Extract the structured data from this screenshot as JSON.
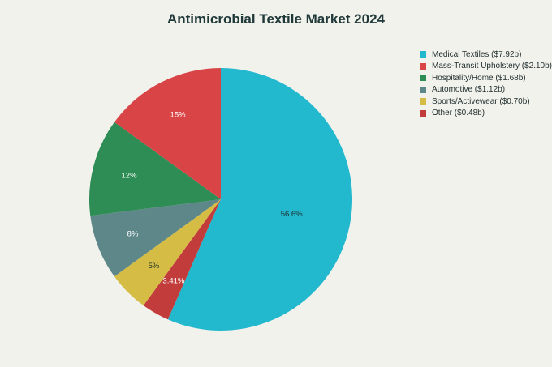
{
  "chart_data": {
    "type": "pie",
    "title": "Antimicrobial Textile Market 2024",
    "slices": [
      {
        "name": "Medical Textiles ($7.92b)",
        "value": 56.6,
        "label": "56.6%",
        "color": "#22b8cd",
        "label_color": "#1f2d2d"
      },
      {
        "name": "Other ($0.48b)",
        "value": 3.41,
        "label": "3.41%",
        "color": "#c33c3c",
        "label_color": "#ffffff"
      },
      {
        "name": "Sports/Activewear ($0.70b)",
        "value": 5,
        "label": "5%",
        "color": "#d5bd45",
        "label_color": "#1f2d2d"
      },
      {
        "name": "Automotive ($1.12b)",
        "value": 8,
        "label": "8%",
        "color": "#5d8789",
        "label_color": "#ffffff"
      },
      {
        "name": "Hospitality/Home ($1.68b)",
        "value": 12,
        "label": "12%",
        "color": "#2e8d55",
        "label_color": "#ffffff"
      },
      {
        "name": "Mass-Transit Upholstery ($2.10b)",
        "value": 15,
        "label": "15%",
        "color": "#d94447",
        "label_color": "#ffffff"
      }
    ],
    "legend": {
      "placement": "top-right",
      "entries": [
        {
          "label": "Medical Textiles ($7.92b)",
          "color": "#22b8cd"
        },
        {
          "label": "Mass-Transit Upholstery ($2.10b)",
          "color": "#d94447"
        },
        {
          "label": "Hospitality/Home ($1.68b)",
          "color": "#2e8d55"
        },
        {
          "label": "Automotive ($1.12b)",
          "color": "#5d8789"
        },
        {
          "label": "Sports/Activewear ($0.70b)",
          "color": "#d5bd45"
        },
        {
          "label": "Other ($0.48b)",
          "color": "#c33c3c"
        }
      ]
    }
  }
}
